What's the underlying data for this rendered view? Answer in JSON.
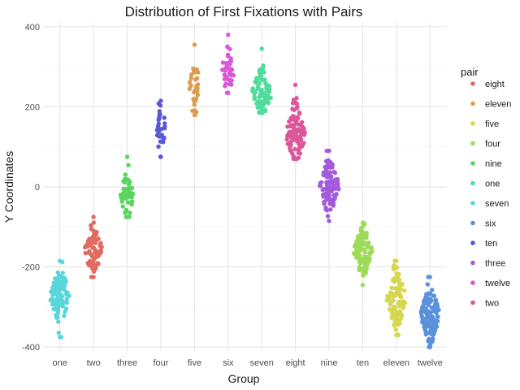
{
  "chart_data": {
    "type": "scatter",
    "title": "Distribution of First Fixations with Pairs",
    "xlabel": "Group",
    "ylabel": "Y Coordinates",
    "categories": [
      "one",
      "two",
      "three",
      "four",
      "five",
      "six",
      "seven",
      "eight",
      "nine",
      "ten",
      "eleven",
      "twelve"
    ],
    "ylim": [
      -410,
      410
    ],
    "yticks": [
      -400,
      -200,
      0,
      200,
      400
    ],
    "ytick_labels": [
      "-400",
      "-200",
      "0",
      "200",
      "400"
    ],
    "grid": true,
    "legend": {
      "title": "pair",
      "placement": "right",
      "entries": [
        {
          "name": "eight",
          "color": "#E16A5F"
        },
        {
          "name": "eleven",
          "color": "#DB9D4F"
        },
        {
          "name": "five",
          "color": "#D6D64F"
        },
        {
          "name": "four",
          "color": "#9DDB58"
        },
        {
          "name": "nine",
          "color": "#58D65B"
        },
        {
          "name": "one",
          "color": "#4FDB9B"
        },
        {
          "name": "seven",
          "color": "#58D6DB"
        },
        {
          "name": "six",
          "color": "#5A91DB"
        },
        {
          "name": "ten",
          "color": "#5A57D6"
        },
        {
          "name": "three",
          "color": "#A35ADB"
        },
        {
          "name": "twelve",
          "color": "#DB57D6"
        },
        {
          "name": "two",
          "color": "#DB579B"
        }
      ]
    },
    "series": [
      {
        "group": "one",
        "pair": "seven",
        "n": 90,
        "center": -275,
        "min": -375,
        "max": -185
      },
      {
        "group": "two",
        "pair": "eight",
        "n": 75,
        "center": -160,
        "min": -225,
        "max": -75
      },
      {
        "group": "three",
        "pair": "nine",
        "n": 45,
        "center": -20,
        "min": -75,
        "max": 75
      },
      {
        "group": "four",
        "pair": "ten",
        "n": 30,
        "center": 150,
        "min": 75,
        "max": 215
      },
      {
        "group": "five",
        "pair": "eleven",
        "n": 32,
        "center": 250,
        "min": 180,
        "max": 355
      },
      {
        "group": "six",
        "pair": "twelve",
        "n": 42,
        "center": 290,
        "min": 235,
        "max": 380
      },
      {
        "group": "seven",
        "pair": "one",
        "n": 80,
        "center": 235,
        "min": 185,
        "max": 345
      },
      {
        "group": "eight",
        "pair": "two",
        "n": 110,
        "center": 130,
        "min": 70,
        "max": 255
      },
      {
        "group": "nine",
        "pair": "three",
        "n": 110,
        "center": 0,
        "min": -85,
        "max": 90
      },
      {
        "group": "ten",
        "pair": "four",
        "n": 110,
        "center": -160,
        "min": -245,
        "max": -90
      },
      {
        "group": "eleven",
        "pair": "five",
        "n": 95,
        "center": -280,
        "min": -370,
        "max": -185
      },
      {
        "group": "twelve",
        "pair": "six",
        "n": 120,
        "center": -320,
        "min": -400,
        "max": -225
      }
    ]
  }
}
